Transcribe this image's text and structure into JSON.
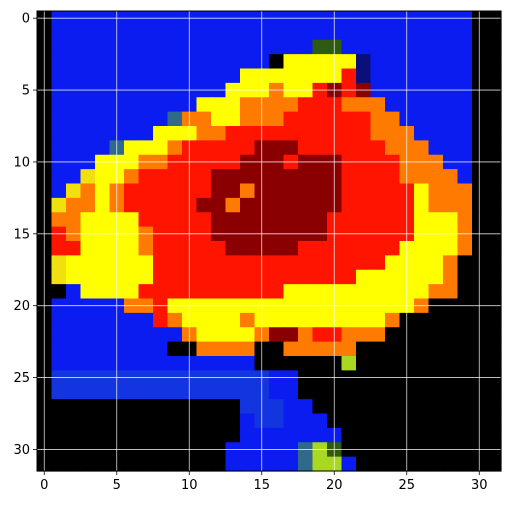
{
  "chart_data": {
    "type": "heatmap",
    "title": "",
    "xlabel": "",
    "ylabel": "",
    "grid": true,
    "xlim": [
      -0.5,
      31.5
    ],
    "ylim": [
      31.5,
      -0.5
    ],
    "xticks": [
      0,
      5,
      10,
      15,
      20,
      25,
      30
    ],
    "yticks": [
      0,
      5,
      10,
      15,
      20,
      25,
      30
    ],
    "colors": {
      "B": "#0a1cf0",
      "b": "#1235e0",
      "N": "#0a0f7a",
      "K": "#000000",
      "R": "#ff1400",
      "r": "#cf0d00",
      "D": "#8a0000",
      "O": "#ff7a00",
      "o": "#ff9a10",
      "Y": "#ffff00",
      "y": "#f0e010",
      "G": "#2f5a10",
      "T": "#2f6a8a",
      "L": "#a8d820"
    },
    "rows": [
      "KBBBBBBBBBBBBBBBBBBBBBBBBBBBBBKK",
      "KBBBBBBBBBBBBBBBBBBBBBBBBBBBBBKK",
      "KBBBBBBBBBBBBBBBBBBGGBBBBBBBBBKK",
      "KBBBBBBBBBBBBBBBKYYYYYNBBBBBBBKK",
      "KBBBBBBBBBBBBBYYYYYYYRNBBBBBBBKK",
      "KBBBBBBBBBBBBYYYOYYRDRDBBBBBBBKK",
      "KBBBBBBBBBBYYYOOOORRROOOBBBBBBKK",
      "KBBBBBBBBTOOYYOOORRRRRROOBBBBBKK",
      "KBBBBBBBYYYOORRRRRRRRRROOOBBBBKK",
      "KBBBBTYYYORRRRRDDDRRRRRROOOBBBKK",
      "KBBBYYYOORRRRRDDDRDDDRRRROOOBBKK",
      "KBByYYORRRRRDDDDDDDDDRRRROOOOBKK",
      "KByOYORRRRRRDDODDDDDDRRRRRYOOOKK",
      "KyOOYORRRRRDDODDDDDDDRRRRRYOOOKK",
      "KOOYYYYRRRRRDDDDDDDDRRRRRRYYYOKK",
      "KROYYYYORRRRDDDDDDDDRRRRRRYYYOKK",
      "KRRYYYYORRRRRDDDDDRRRRRRRYYYYOKK",
      "KyYYYYYYRRRRRRRRRRRRRRRRYYYYOKKK",
      "KyYYYYYYRRRRRRRRRRRRRRYYYYYYOKKK",
      "KKBYYYYRRRRRRRRRRYYYYYYYYYYOOKKK",
      "KBBBBBOORYYYYYYYYYYYYYYYYYOKKKKK",
      "KBBBBBBBROYYYYOYYYYYYYYYOKKKKKKK",
      "KBBBBBBBBBOYYYYODDORROOOKKKKKKKK",
      "KBBBBBBBBKKOOOOKKOOOOOKKKKKKKKKK",
      "KBBBBBBBBBBBBBBKKKKKKLKKKKKKKKKK",
      "KbbbbbbbbbbbbbbbBBKKKKKKKKKKKKKK",
      "KbbbbbbbbbbbbbbbBBKKKKKKKKKKKKKK",
      "KKKKKKKKKKKKKKbbbBBKKKKKKKKKKKKK",
      "KKKKKKKKKKKKKKBbbBBBKKKKKKKKKKKK",
      "KKKKKKKKKKKKKKBBBBBBBKKKKKKKKKKK",
      "KKKKKKKKKKKKKBBBBBTLGKKKKKKKKKKK",
      "KKKKKKKKKKKKKBBBBBTLLBKKKKKKKKKK"
    ]
  }
}
